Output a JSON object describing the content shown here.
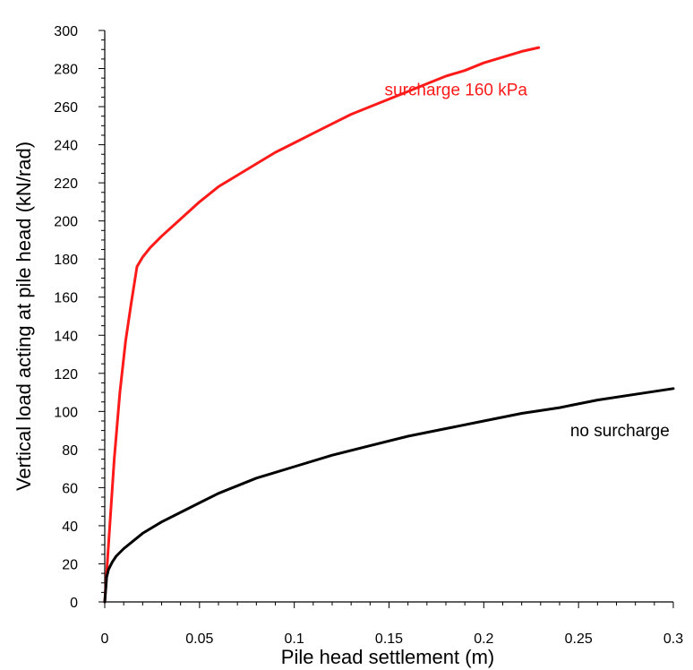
{
  "chart_data": {
    "type": "line",
    "xlabel": "Pile head settlement (m)",
    "ylabel": "Vertical load acting at pile head (kN/rad)",
    "xlim": [
      0,
      0.3
    ],
    "ylim": [
      0,
      300
    ],
    "x_ticks": [
      0,
      0.05,
      0.1,
      0.15,
      0.2,
      0.25,
      0.3
    ],
    "x_tick_labels": [
      "0",
      "0.05",
      "0.1",
      "0.15",
      "0.2",
      "0.25",
      "0.3"
    ],
    "y_ticks": [
      0,
      20,
      40,
      60,
      80,
      100,
      120,
      140,
      160,
      180,
      200,
      220,
      240,
      260,
      280,
      300
    ],
    "y_tick_labels": [
      "0",
      "20",
      "40",
      "60",
      "80",
      "100",
      "120",
      "140",
      "160",
      "180",
      "200",
      "220",
      "240",
      "260",
      "280",
      "300"
    ],
    "grid": false,
    "legend": "none (series labelled directly on the plot)",
    "series": [
      {
        "name": "surcharge 160 kPa",
        "color": "#ff1a1a",
        "label_anchor": [
          0.223,
          266
        ],
        "x": [
          0,
          0.002,
          0.005,
          0.008,
          0.011,
          0.014,
          0.017,
          0.02,
          0.024,
          0.03,
          0.04,
          0.05,
          0.06,
          0.07,
          0.08,
          0.09,
          0.1,
          0.11,
          0.12,
          0.13,
          0.14,
          0.15,
          0.16,
          0.17,
          0.18,
          0.19,
          0.2,
          0.21,
          0.22,
          0.229
        ],
        "y": [
          0,
          30,
          75,
          110,
          137,
          157,
          176,
          181,
          186,
          192,
          201,
          210,
          218,
          224,
          230,
          236,
          241,
          246,
          251,
          256,
          260,
          264,
          268,
          272,
          276,
          279,
          283,
          286,
          289,
          291
        ]
      },
      {
        "name": "no surcharge",
        "color": "#000000",
        "label_anchor": [
          0.298,
          87
        ],
        "x": [
          0,
          0.001,
          0.002,
          0.004,
          0.006,
          0.01,
          0.015,
          0.02,
          0.03,
          0.04,
          0.05,
          0.06,
          0.07,
          0.08,
          0.09,
          0.1,
          0.12,
          0.14,
          0.16,
          0.18,
          0.2,
          0.22,
          0.24,
          0.26,
          0.28,
          0.3
        ],
        "y": [
          0,
          13,
          17,
          21,
          24,
          28,
          32,
          36,
          42,
          47,
          52,
          57,
          61,
          65,
          68,
          71,
          77,
          82,
          87,
          91,
          95,
          99,
          102,
          106,
          109,
          112
        ]
      }
    ]
  }
}
